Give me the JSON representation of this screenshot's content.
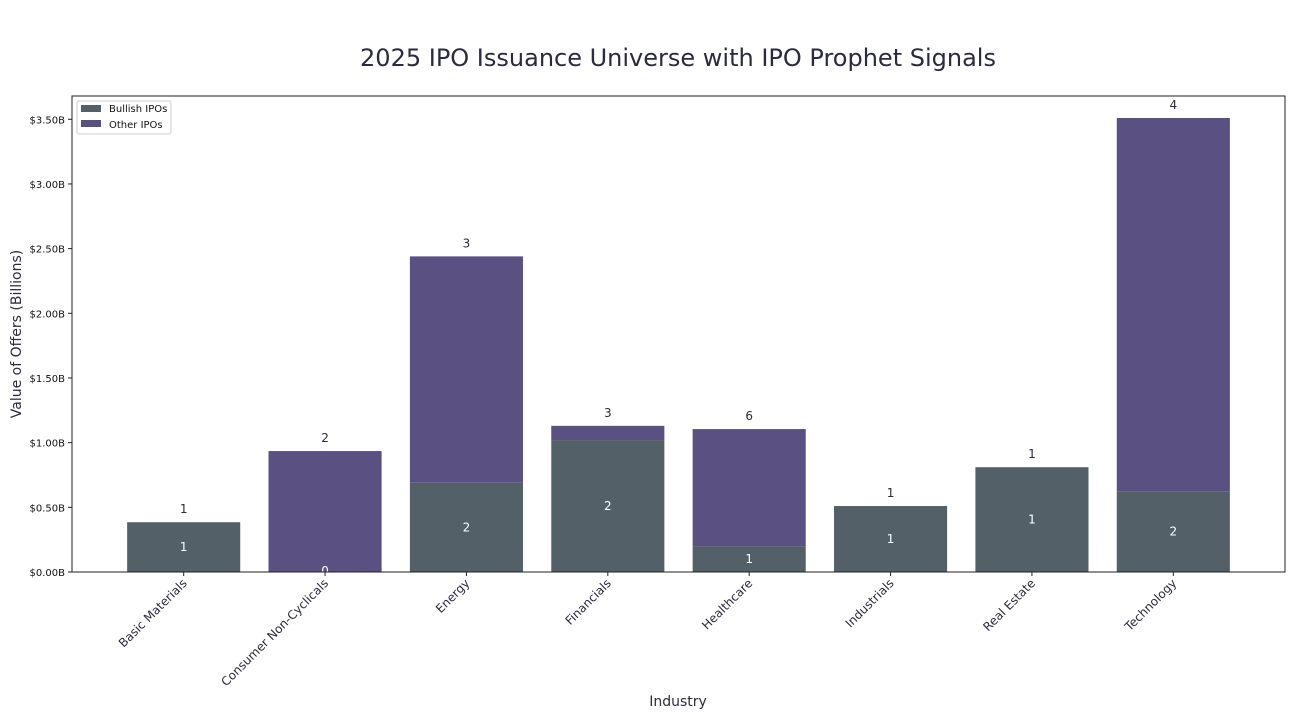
{
  "chart_data": {
    "type": "bar",
    "stacked": true,
    "title": "2025 IPO Issuance Universe with IPO Prophet Signals",
    "xlabel": "Industry",
    "ylabel": "Value of Offers (Billions)",
    "ylim": [
      0,
      3.68
    ],
    "yticks": [
      0,
      0.5,
      1.0,
      1.5,
      2.0,
      2.5,
      3.0,
      3.5
    ],
    "ytick_labels": [
      "$0.00B",
      "$0.50B",
      "$1.00B",
      "$1.50B",
      "$2.00B",
      "$2.50B",
      "$3.00B",
      "$3.50B"
    ],
    "categories": [
      "Basic Materials",
      "Consumer Non-Cyclicals",
      "Energy",
      "Financials",
      "Healthcare",
      "Industrials",
      "Real Estate",
      "Technology"
    ],
    "series": [
      {
        "name": "Bullish IPOs",
        "color": "#536068",
        "values": [
          0.385,
          0.0,
          0.69,
          1.02,
          0.2,
          0.51,
          0.81,
          0.625
        ],
        "counts": [
          "1",
          "0",
          "2",
          "2",
          "1",
          "1",
          "1",
          "2"
        ]
      },
      {
        "name": "Other IPOs",
        "color": "#5a5082",
        "values": [
          0.0,
          0.935,
          1.75,
          0.11,
          0.905,
          0.0,
          0.0,
          2.885
        ]
      }
    ],
    "total_counts": [
      "1",
      "2",
      "3",
      "3",
      "6",
      "1",
      "1",
      "4"
    ],
    "legend": {
      "position": "top-left",
      "entries": [
        "Bullish IPOs",
        "Other IPOs"
      ]
    },
    "grid": false
  }
}
